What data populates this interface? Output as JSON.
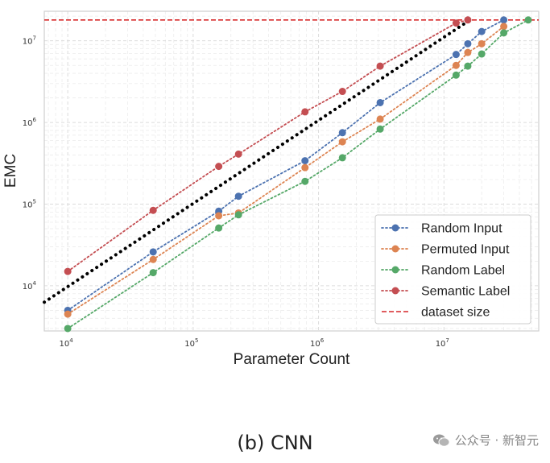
{
  "chart_data": {
    "type": "line",
    "title": "",
    "xlabel": "Parameter Count",
    "ylabel": "EMC",
    "xscale": "log",
    "yscale": "log",
    "xlim": [
      6500,
      57000000
    ],
    "ylim": [
      2800,
      23000000
    ],
    "xticks": [
      {
        "value": 10000,
        "base": "10",
        "exp": "4"
      },
      {
        "value": 100000,
        "base": "10",
        "exp": "5"
      },
      {
        "value": 1000000,
        "base": "10",
        "exp": "6"
      },
      {
        "value": 10000000,
        "base": "10",
        "exp": "7"
      }
    ],
    "yticks": [
      {
        "value": 10000,
        "base": "10",
        "exp": "4"
      },
      {
        "value": 100000,
        "base": "10",
        "exp": "5"
      },
      {
        "value": 1000000,
        "base": "10",
        "exp": "6"
      },
      {
        "value": 10000000,
        "base": "10",
        "exp": "7"
      }
    ],
    "grid": true,
    "legend_position": "lower-right",
    "series": [
      {
        "name": "Random Input",
        "color": "#4c72b0",
        "x": [
          10000,
          48000,
          160000,
          230000,
          780000,
          1550000,
          3100000,
          12500000,
          15500000,
          20000000,
          30000000
        ],
        "y": [
          5000,
          26000,
          82000,
          125000,
          340000,
          750000,
          1750000,
          6800000,
          9200000,
          13000000,
          18000000
        ]
      },
      {
        "name": "Permuted Input",
        "color": "#dd8452",
        "x": [
          10000,
          48000,
          160000,
          230000,
          780000,
          1550000,
          3100000,
          12500000,
          15500000,
          20000000,
          30000000
        ],
        "y": [
          4500,
          21000,
          72000,
          78000,
          280000,
          580000,
          1100000,
          5000000,
          7200000,
          9200000,
          15000000
        ]
      },
      {
        "name": "Random Label",
        "color": "#55a868",
        "x": [
          10000,
          48000,
          160000,
          230000,
          780000,
          1550000,
          3100000,
          12500000,
          15500000,
          20000000,
          30000000,
          47000000
        ],
        "y": [
          3000,
          14500,
          51000,
          74000,
          190000,
          370000,
          830000,
          3800000,
          4900000,
          6900000,
          12500000,
          18000000
        ]
      },
      {
        "name": "Semantic Label",
        "color": "#c44e52",
        "x": [
          10000,
          48000,
          160000,
          230000,
          780000,
          1550000,
          3100000,
          12500000,
          15500000
        ],
        "y": [
          15000,
          84000,
          290000,
          410000,
          1350000,
          2400000,
          4900000,
          16500000,
          18000000
        ]
      }
    ],
    "reference_lines": [
      {
        "name": "dataset size",
        "orientation": "horizontal",
        "y": 18000000,
        "color": "#d62728",
        "style": "dashed"
      },
      {
        "name": "trend",
        "x": [
          6500,
          17000000
        ],
        "y": [
          6300,
          19000000
        ],
        "color": "#000000",
        "style": "dotted",
        "in_legend": false
      }
    ]
  },
  "caption": "(b) CNN",
  "watermark": "公众号 · 新智元"
}
